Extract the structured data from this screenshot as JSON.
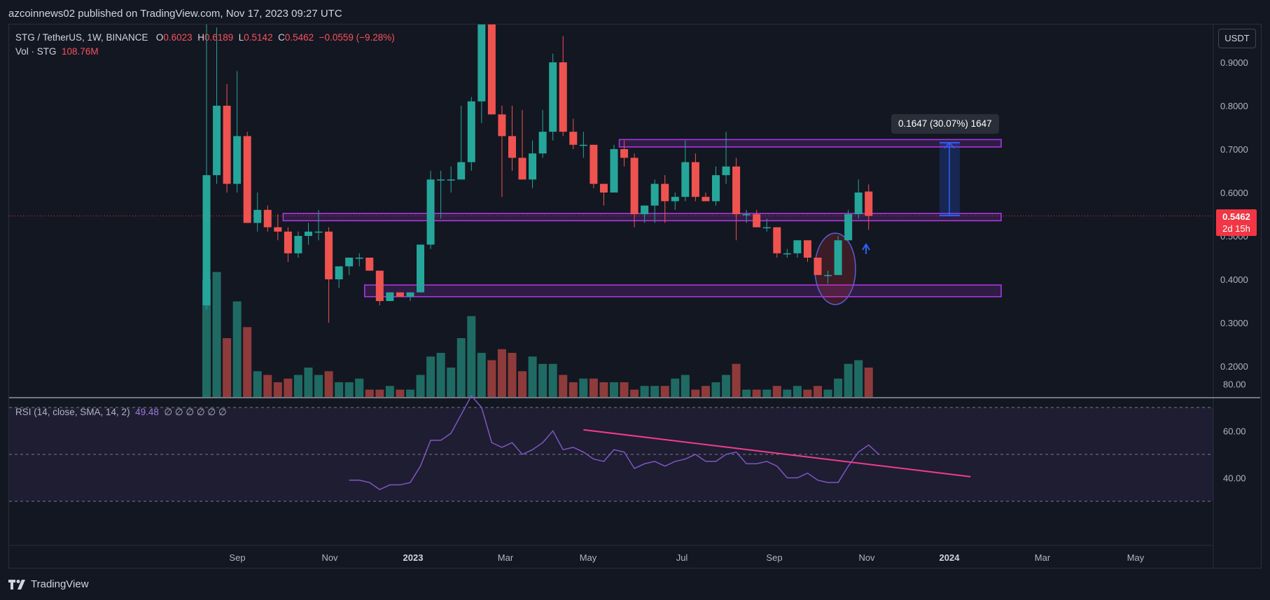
{
  "header": {
    "publisher": "azcoinnews02 published on TradingView.com, Nov 17, 2023 09:27 UTC"
  },
  "legend": {
    "symbol": "STG / TetherUS, 1W, BINANCE",
    "o_label": "O",
    "o": "0.6023",
    "h_label": "H",
    "h": "0.6189",
    "l_label": "L",
    "l": "0.5142",
    "c_label": "C",
    "c": "0.5462",
    "change": "−0.0559 (−9.28%)",
    "vol_label": "Vol · STG",
    "vol": "108.76M"
  },
  "rsi_legend": {
    "label": "RSI (14, close, SMA, 14, 2)",
    "value": "49.48",
    "extras": "∅ ∅ ∅ ∅ ∅ ∅"
  },
  "currency_button": "USDT",
  "price_tag": {
    "price": "0.5462",
    "countdown": "2d 15h"
  },
  "measure_label": "0.1647 (30.07%) 1647",
  "footer": {
    "brand": "TradingView"
  },
  "colors": {
    "up": "#26a69a",
    "down": "#ef5350",
    "zone": "#b238e8",
    "rsi": "#7e57c2",
    "trend": "#f23c8b",
    "measure": "#2962ff"
  },
  "chart_data": [
    {
      "type": "candlestick",
      "title": "STG / TetherUS, 1W, BINANCE",
      "x_ticks": [
        "Sep",
        "Nov",
        "2023",
        "Mar",
        "May",
        "Jul",
        "Sep",
        "Nov",
        "2024",
        "Mar",
        "May"
      ],
      "y_ticks": [
        "0.9000",
        "0.8000",
        "0.7000",
        "0.6000",
        "0.5000",
        "0.4000",
        "0.3000",
        "0.2000"
      ],
      "candles": [
        {
          "o": 0.34,
          "h": 1.05,
          "l": 0.33,
          "c": 0.64
        },
        {
          "o": 0.64,
          "h": 0.98,
          "l": 0.62,
          "c": 0.8
        },
        {
          "o": 0.8,
          "h": 0.85,
          "l": 0.6,
          "c": 0.62
        },
        {
          "o": 0.62,
          "h": 0.88,
          "l": 0.6,
          "c": 0.73
        },
        {
          "o": 0.73,
          "h": 0.74,
          "l": 0.53,
          "c": 0.53
        },
        {
          "o": 0.53,
          "h": 0.6,
          "l": 0.51,
          "c": 0.56
        },
        {
          "o": 0.56,
          "h": 0.57,
          "l": 0.51,
          "c": 0.52
        },
        {
          "o": 0.52,
          "h": 0.55,
          "l": 0.49,
          "c": 0.51
        },
        {
          "o": 0.51,
          "h": 0.52,
          "l": 0.44,
          "c": 0.46
        },
        {
          "o": 0.46,
          "h": 0.51,
          "l": 0.45,
          "c": 0.5
        },
        {
          "o": 0.5,
          "h": 0.53,
          "l": 0.48,
          "c": 0.51
        },
        {
          "o": 0.51,
          "h": 0.56,
          "l": 0.49,
          "c": 0.51
        },
        {
          "o": 0.51,
          "h": 0.52,
          "l": 0.3,
          "c": 0.4
        },
        {
          "o": 0.4,
          "h": 0.43,
          "l": 0.38,
          "c": 0.43
        },
        {
          "o": 0.43,
          "h": 0.45,
          "l": 0.41,
          "c": 0.45
        },
        {
          "o": 0.45,
          "h": 0.46,
          "l": 0.43,
          "c": 0.45
        },
        {
          "o": 0.45,
          "h": 0.45,
          "l": 0.42,
          "c": 0.42
        },
        {
          "o": 0.42,
          "h": 0.42,
          "l": 0.34,
          "c": 0.35
        },
        {
          "o": 0.35,
          "h": 0.37,
          "l": 0.35,
          "c": 0.37
        },
        {
          "o": 0.37,
          "h": 0.37,
          "l": 0.36,
          "c": 0.36
        },
        {
          "o": 0.36,
          "h": 0.37,
          "l": 0.35,
          "c": 0.37
        },
        {
          "o": 0.37,
          "h": 0.48,
          "l": 0.37,
          "c": 0.48
        },
        {
          "o": 0.48,
          "h": 0.65,
          "l": 0.47,
          "c": 0.63
        },
        {
          "o": 0.63,
          "h": 0.65,
          "l": 0.54,
          "c": 0.63
        },
        {
          "o": 0.63,
          "h": 0.66,
          "l": 0.6,
          "c": 0.63
        },
        {
          "o": 0.63,
          "h": 0.8,
          "l": 0.63,
          "c": 0.67
        },
        {
          "o": 0.67,
          "h": 0.82,
          "l": 0.65,
          "c": 0.81
        },
        {
          "o": 0.81,
          "h": 1.07,
          "l": 0.76,
          "c": 1.06
        },
        {
          "o": 1.06,
          "h": 1.1,
          "l": 0.78,
          "c": 0.78
        },
        {
          "o": 0.78,
          "h": 0.8,
          "l": 0.59,
          "c": 0.73
        },
        {
          "o": 0.73,
          "h": 0.8,
          "l": 0.65,
          "c": 0.68
        },
        {
          "o": 0.68,
          "h": 0.79,
          "l": 0.63,
          "c": 0.63
        },
        {
          "o": 0.63,
          "h": 0.72,
          "l": 0.61,
          "c": 0.69
        },
        {
          "o": 0.69,
          "h": 0.79,
          "l": 0.68,
          "c": 0.74
        },
        {
          "o": 0.74,
          "h": 0.92,
          "l": 0.72,
          "c": 0.9
        },
        {
          "o": 0.9,
          "h": 0.96,
          "l": 0.73,
          "c": 0.74
        },
        {
          "o": 0.74,
          "h": 0.77,
          "l": 0.7,
          "c": 0.71
        },
        {
          "o": 0.71,
          "h": 0.74,
          "l": 0.68,
          "c": 0.71
        },
        {
          "o": 0.71,
          "h": 0.71,
          "l": 0.61,
          "c": 0.62
        },
        {
          "o": 0.62,
          "h": 0.62,
          "l": 0.57,
          "c": 0.6
        },
        {
          "o": 0.6,
          "h": 0.71,
          "l": 0.6,
          "c": 0.7
        },
        {
          "o": 0.7,
          "h": 0.72,
          "l": 0.66,
          "c": 0.68
        },
        {
          "o": 0.68,
          "h": 0.69,
          "l": 0.52,
          "c": 0.55
        },
        {
          "o": 0.55,
          "h": 0.57,
          "l": 0.53,
          "c": 0.57
        },
        {
          "o": 0.57,
          "h": 0.63,
          "l": 0.53,
          "c": 0.62
        },
        {
          "o": 0.62,
          "h": 0.64,
          "l": 0.53,
          "c": 0.58
        },
        {
          "o": 0.58,
          "h": 0.6,
          "l": 0.56,
          "c": 0.59
        },
        {
          "o": 0.59,
          "h": 0.72,
          "l": 0.58,
          "c": 0.67
        },
        {
          "o": 0.67,
          "h": 0.69,
          "l": 0.58,
          "c": 0.59
        },
        {
          "o": 0.59,
          "h": 0.6,
          "l": 0.58,
          "c": 0.58
        },
        {
          "o": 0.58,
          "h": 0.66,
          "l": 0.57,
          "c": 0.64
        },
        {
          "o": 0.64,
          "h": 0.74,
          "l": 0.62,
          "c": 0.66
        },
        {
          "o": 0.66,
          "h": 0.68,
          "l": 0.49,
          "c": 0.55
        },
        {
          "o": 0.55,
          "h": 0.56,
          "l": 0.53,
          "c": 0.55
        },
        {
          "o": 0.55,
          "h": 0.56,
          "l": 0.52,
          "c": 0.52
        },
        {
          "o": 0.52,
          "h": 0.54,
          "l": 0.51,
          "c": 0.52
        },
        {
          "o": 0.52,
          "h": 0.52,
          "l": 0.45,
          "c": 0.46
        },
        {
          "o": 0.46,
          "h": 0.47,
          "l": 0.45,
          "c": 0.46
        },
        {
          "o": 0.46,
          "h": 0.49,
          "l": 0.45,
          "c": 0.49
        },
        {
          "o": 0.49,
          "h": 0.49,
          "l": 0.44,
          "c": 0.45
        },
        {
          "o": 0.45,
          "h": 0.45,
          "l": 0.41,
          "c": 0.41
        },
        {
          "o": 0.41,
          "h": 0.42,
          "l": 0.39,
          "c": 0.41
        },
        {
          "o": 0.41,
          "h": 0.5,
          "l": 0.41,
          "c": 0.49
        },
        {
          "o": 0.49,
          "h": 0.56,
          "l": 0.49,
          "c": 0.55
        },
        {
          "o": 0.55,
          "h": 0.63,
          "l": 0.54,
          "c": 0.6
        },
        {
          "o": 0.6023,
          "h": 0.6189,
          "l": 0.5142,
          "c": 0.5462
        }
      ],
      "volume": [
        0.32,
        0.34,
        0.16,
        0.26,
        0.19,
        0.07,
        0.06,
        0.04,
        0.05,
        0.06,
        0.08,
        0.06,
        0.07,
        0.04,
        0.04,
        0.05,
        0.02,
        0.02,
        0.03,
        0.02,
        0.02,
        0.06,
        0.11,
        0.12,
        0.08,
        0.16,
        0.22,
        0.12,
        0.1,
        0.13,
        0.12,
        0.07,
        0.11,
        0.09,
        0.09,
        0.06,
        0.04,
        0.05,
        0.05,
        0.04,
        0.04,
        0.04,
        0.02,
        0.03,
        0.03,
        0.03,
        0.05,
        0.06,
        0.02,
        0.03,
        0.04,
        0.06,
        0.09,
        0.02,
        0.02,
        0.02,
        0.03,
        0.02,
        0.03,
        0.02,
        0.03,
        0.02,
        0.05,
        0.09,
        0.1,
        0.08
      ],
      "zones": [
        {
          "top": 0.722,
          "bottom": 0.705,
          "from_index": 41,
          "to_index": 79
        },
        {
          "top": 0.552,
          "bottom": 0.535,
          "from_index": 8,
          "to_index": 79
        },
        {
          "top": 0.387,
          "bottom": 0.36,
          "from_index": 16,
          "to_index": 79
        }
      ],
      "measure": {
        "from": 0.547,
        "to": 0.715,
        "label": "0.1647 (30.07%) 1647"
      },
      "ylim": [
        0.13,
        1.0
      ],
      "current_price": 0.5462
    },
    {
      "type": "line",
      "title": "RSI (14, close, SMA, 14, 2)",
      "y_ticks": [
        "80.00",
        "60.00",
        "40.00"
      ],
      "bands": [
        70,
        50,
        30
      ],
      "start_index": 14,
      "rsi": [
        39,
        39,
        38,
        35,
        37,
        37,
        38,
        45,
        56,
        56,
        59,
        67,
        75,
        70,
        55,
        53,
        55,
        50,
        52,
        55,
        60,
        52,
        53,
        51,
        48,
        47,
        52,
        51,
        44,
        46,
        47,
        45,
        47,
        48,
        50,
        47,
        47,
        50,
        51,
        46,
        46,
        47,
        45,
        40,
        40,
        42,
        39,
        38,
        38,
        45,
        51,
        54,
        50
      ],
      "trendline": {
        "from": [
          37,
          60.5
        ],
        "to": [
          75,
          40.5
        ]
      },
      "ylim": [
        22,
        83
      ]
    }
  ]
}
